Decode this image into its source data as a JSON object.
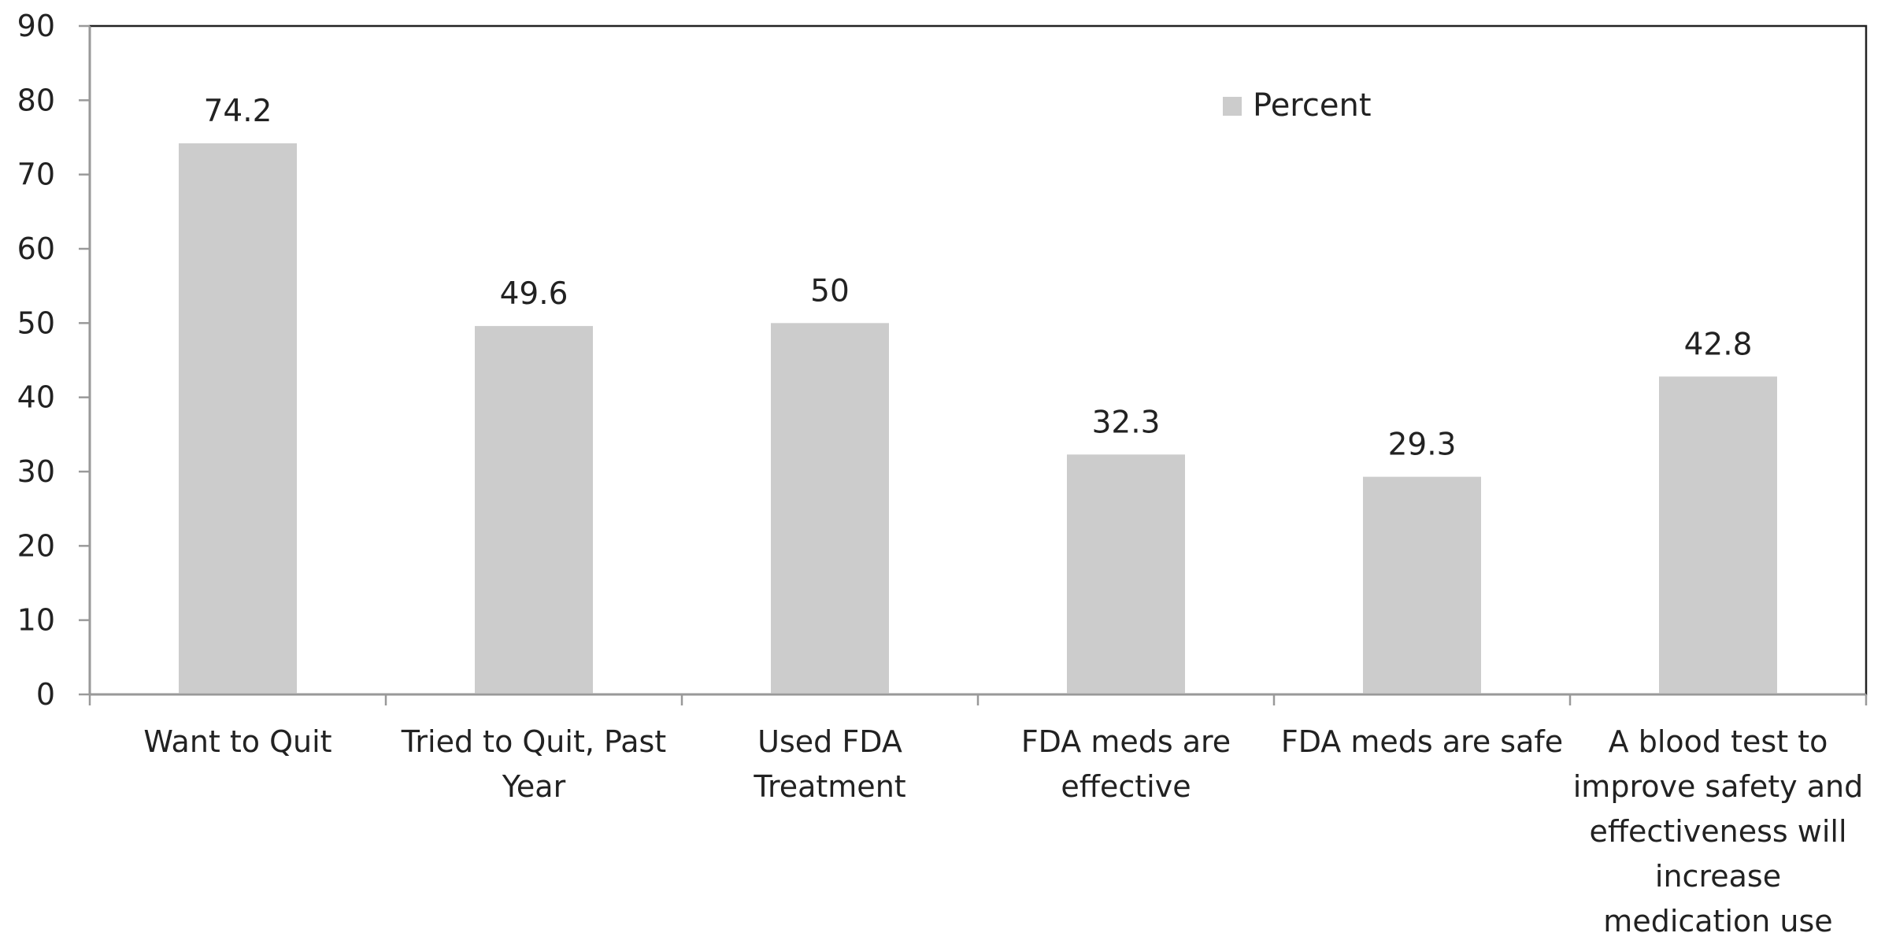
{
  "chart_data": {
    "type": "bar",
    "categories": [
      "Want to Quit",
      "Tried to Quit, Past Year",
      "Used FDA Treatment",
      "FDA meds are effective",
      "FDA meds are safe",
      "A blood test to improve safety and effectiveness will increase medication use"
    ],
    "series": [
      {
        "name": "Percent",
        "values": [
          74.2,
          49.6,
          50,
          32.3,
          29.3,
          42.8
        ],
        "color": "#cccccc"
      }
    ],
    "ylim": [
      0,
      90
    ],
    "yticks": [
      0,
      10,
      20,
      30,
      40,
      50,
      60,
      70,
      80,
      90
    ],
    "title": "",
    "xlabel": "",
    "ylabel": "",
    "legend": {
      "position": "top-right",
      "entries": [
        "Percent"
      ]
    },
    "grid": false,
    "data_labels": true
  }
}
